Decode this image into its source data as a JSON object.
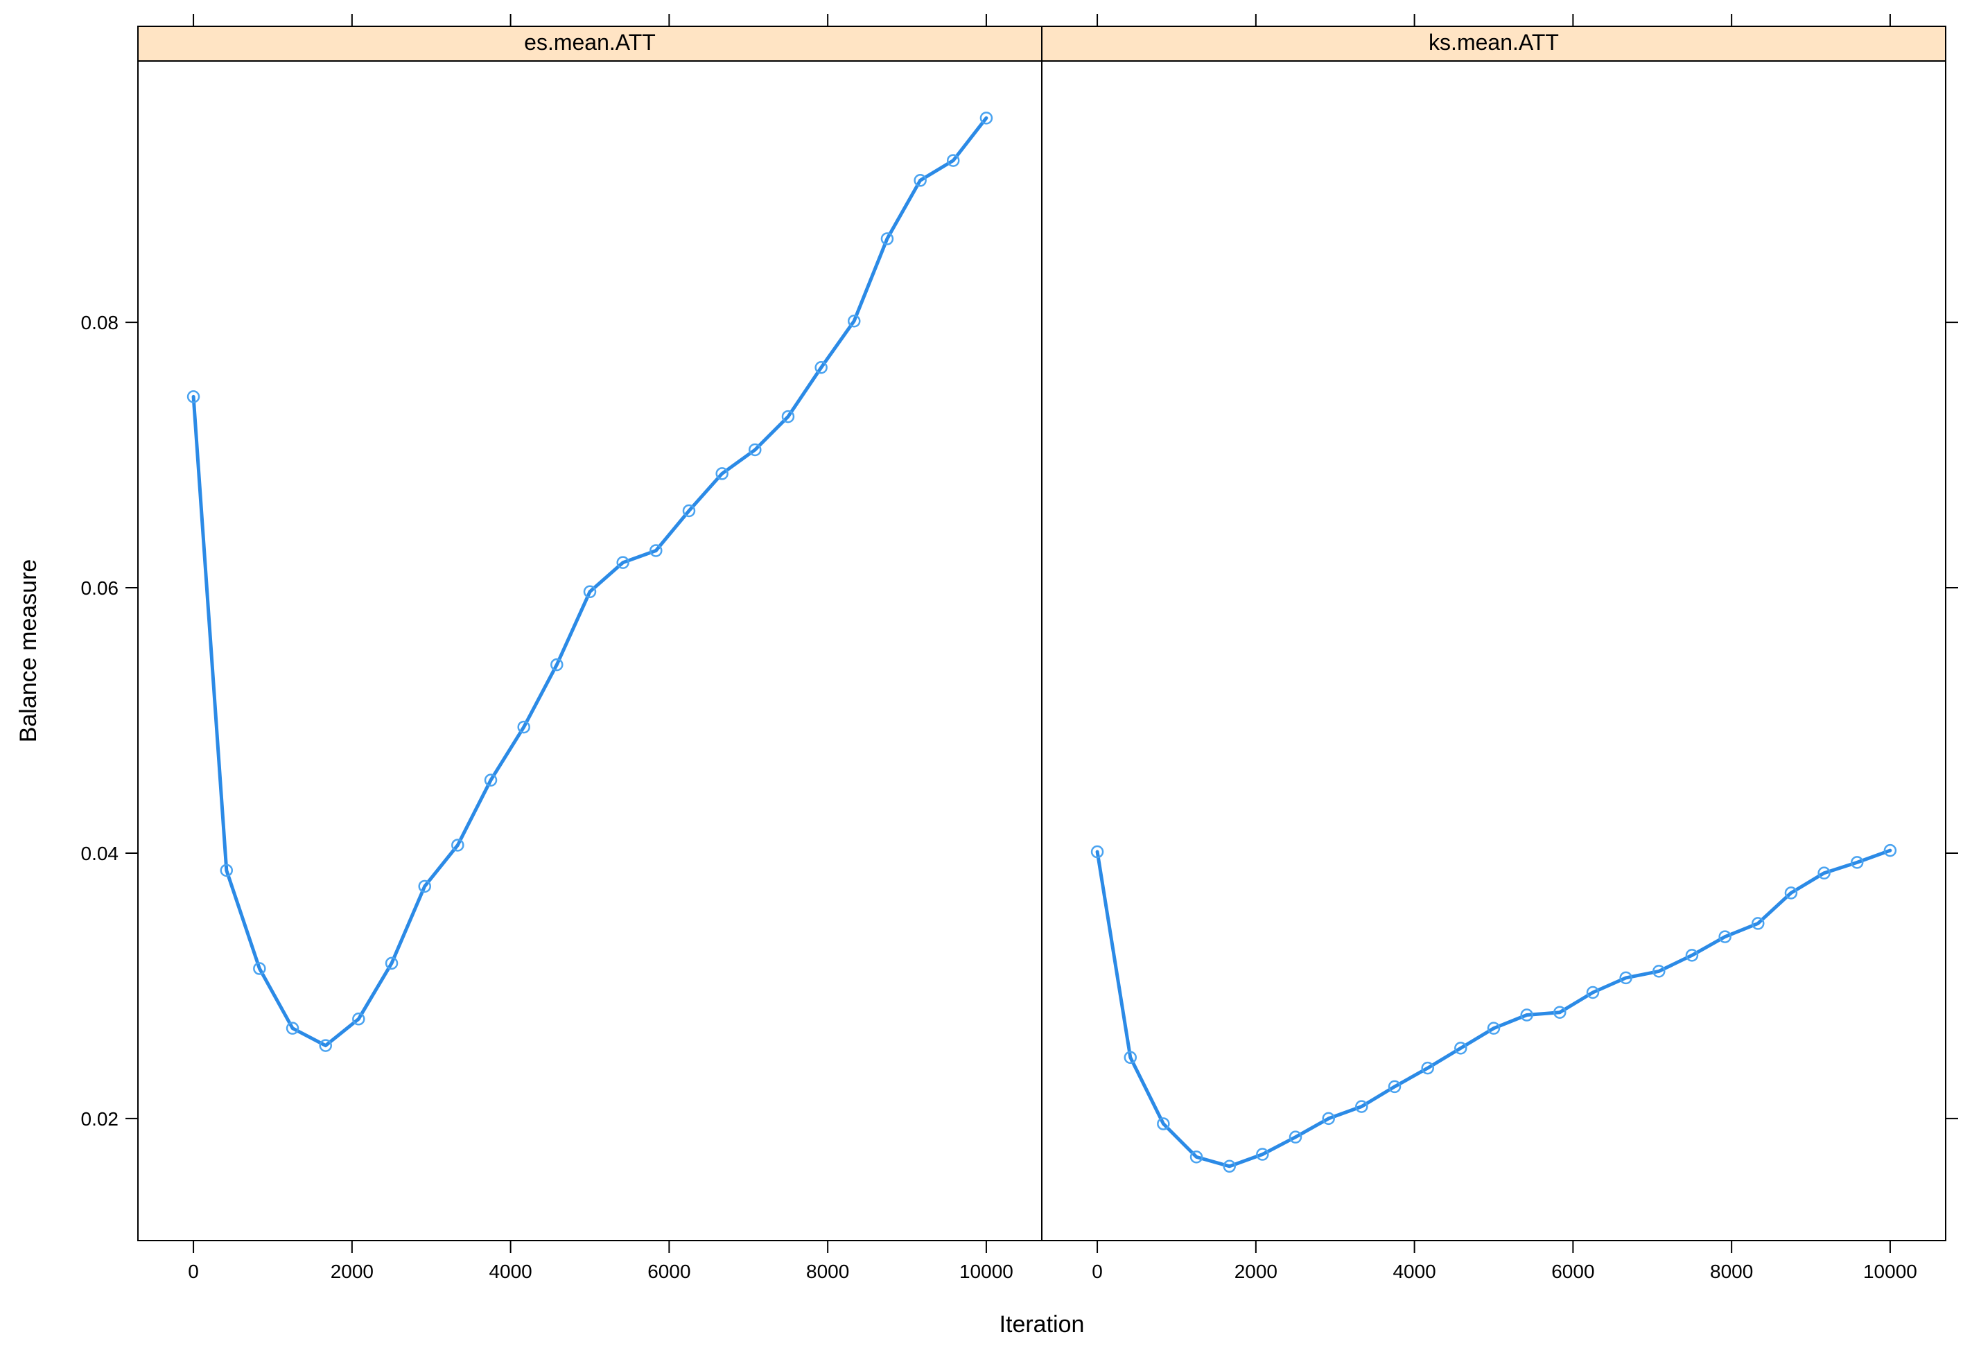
{
  "colors": {
    "line": "#2b8ae6",
    "point": "#4aa3f0",
    "strip": "#ffe4c4",
    "frame": "#000000"
  },
  "chart_data": {
    "type": "line",
    "xlabel": "Iteration",
    "ylabel": "Balance measure",
    "xlim": [
      -700,
      10700
    ],
    "ylim": [
      0.0108,
      0.0997
    ],
    "xticks": [
      0,
      2000,
      4000,
      6000,
      8000,
      10000
    ],
    "yticks": [
      0.02,
      0.04,
      0.06,
      0.08
    ],
    "ytick_labels": [
      "0.02",
      "0.04",
      "0.06",
      "0.08"
    ],
    "panels": [
      {
        "strip": "es.mean.ATT",
        "x": [
          0,
          417,
          833,
          1250,
          1667,
          2083,
          2500,
          2917,
          3333,
          3750,
          4167,
          4583,
          5000,
          5417,
          5833,
          6250,
          6667,
          7083,
          7500,
          7917,
          8333,
          8750,
          9167,
          9583,
          10000
        ],
        "y": [
          0.0744,
          0.0387,
          0.0313,
          0.0268,
          0.0255,
          0.0275,
          0.0317,
          0.0375,
          0.0406,
          0.0455,
          0.0495,
          0.0542,
          0.0597,
          0.0619,
          0.0628,
          0.0658,
          0.0686,
          0.0704,
          0.0729,
          0.0766,
          0.0801,
          0.0863,
          0.0907,
          0.0922,
          0.0954
        ]
      },
      {
        "strip": "ks.mean.ATT",
        "x": [
          0,
          417,
          833,
          1250,
          1667,
          2083,
          2500,
          2917,
          3333,
          3750,
          4167,
          4583,
          5000,
          5417,
          5833,
          6250,
          6667,
          7083,
          7500,
          7917,
          8333,
          8750,
          9167,
          9583,
          10000
        ],
        "y": [
          0.0401,
          0.0246,
          0.0196,
          0.0171,
          0.0164,
          0.0173,
          0.0186,
          0.02,
          0.0209,
          0.0224,
          0.0238,
          0.0253,
          0.0268,
          0.0278,
          0.028,
          0.0295,
          0.0306,
          0.0311,
          0.0323,
          0.0337,
          0.0347,
          0.037,
          0.0385,
          0.0393,
          0.0402
        ]
      }
    ]
  }
}
